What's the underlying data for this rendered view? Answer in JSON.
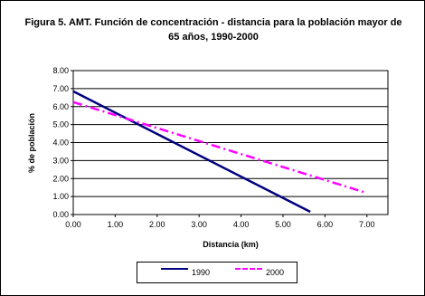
{
  "chart_data": {
    "type": "line",
    "title": "Figura 5. AMT. Función de concentración - distancia para la población mayor de 65 años, 1990-2000",
    "xlabel": "Distancia (km)",
    "ylabel": "% de población",
    "xlim": [
      0,
      7.5
    ],
    "ylim": [
      0,
      8
    ],
    "xticks": [
      "0.00",
      "1.00",
      "2.00",
      "3.00",
      "4.00",
      "5.00",
      "6.00",
      "7.00"
    ],
    "yticks": [
      "0.00",
      "1.00",
      "2.00",
      "3.00",
      "4.00",
      "5.00",
      "6.00",
      "7.00",
      "8.00"
    ],
    "grid": "horizontal",
    "legend_position": "bottom",
    "series": [
      {
        "name": "1990",
        "color": "#000080",
        "style": "solid",
        "x": [
          0,
          5.65
        ],
        "y": [
          6.85,
          0.15
        ]
      },
      {
        "name": "2000",
        "color": "#ff00ff",
        "style": "dashed",
        "x": [
          0,
          7.0
        ],
        "y": [
          6.25,
          1.2
        ]
      }
    ]
  }
}
